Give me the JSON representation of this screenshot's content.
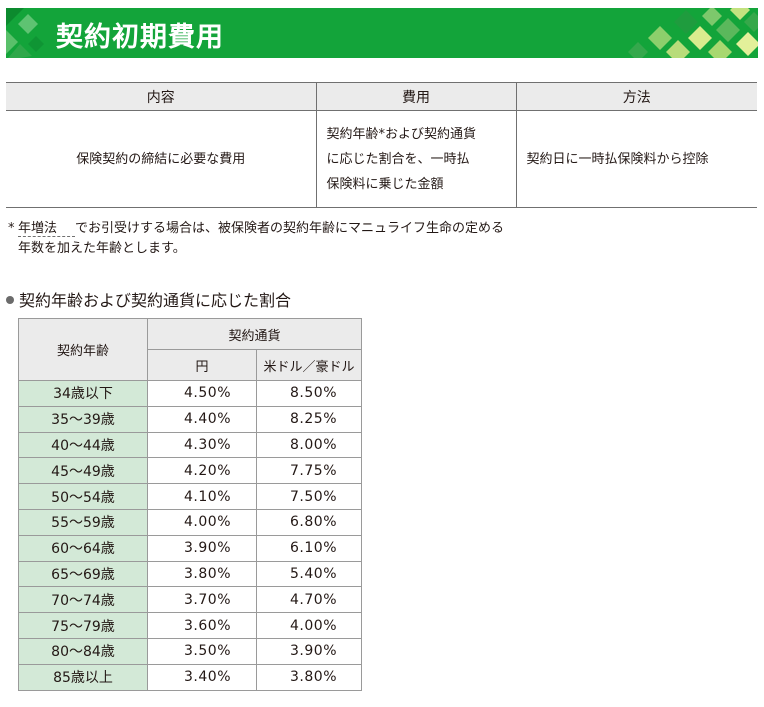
{
  "header": {
    "title": "契約初期費用"
  },
  "main_table": {
    "columns": [
      "内容",
      "費用",
      "方法"
    ],
    "row": {
      "content": "保険契約の締結に必要な費用",
      "cost_lines": [
        "契約年齢*および契約通貨",
        "に応じた割合を、一時払",
        "保険料に乗じた金額"
      ],
      "method": "契約日に一時払保険料から控除"
    }
  },
  "note": {
    "star": "*",
    "term": "年増法",
    "line1_rest": "でお引受けする場合は、被保険者の契約年齢にマニュライフ生命の定める",
    "line2": "年数を加えた年齢とします。"
  },
  "section": {
    "title": "契約年齢および契約通貨に応じた割合"
  },
  "rate_table": {
    "header_age": "契約年齢",
    "header_currency": "契約通貨",
    "header_yen": "円",
    "header_usd_aud": "米ドル／豪ドル",
    "rows": [
      {
        "age": "34歳以下",
        "yen": "4.50%",
        "usd": "8.50%"
      },
      {
        "age": "35〜39歳",
        "yen": "4.40%",
        "usd": "8.25%"
      },
      {
        "age": "40〜44歳",
        "yen": "4.30%",
        "usd": "8.00%"
      },
      {
        "age": "45〜49歳",
        "yen": "4.20%",
        "usd": "7.75%"
      },
      {
        "age": "50〜54歳",
        "yen": "4.10%",
        "usd": "7.50%"
      },
      {
        "age": "55〜59歳",
        "yen": "4.00%",
        "usd": "6.80%"
      },
      {
        "age": "60〜64歳",
        "yen": "3.90%",
        "usd": "6.10%"
      },
      {
        "age": "65〜69歳",
        "yen": "3.80%",
        "usd": "5.40%"
      },
      {
        "age": "70〜74歳",
        "yen": "3.70%",
        "usd": "4.70%"
      },
      {
        "age": "75〜79歳",
        "yen": "3.60%",
        "usd": "4.00%"
      },
      {
        "age": "80〜84歳",
        "yen": "3.50%",
        "usd": "3.90%"
      },
      {
        "age": "85歳以上",
        "yen": "3.40%",
        "usd": "3.80%"
      }
    ]
  },
  "colors": {
    "banner_green": "#13a43a",
    "age_cell_green": "#d3e9d7",
    "header_gray": "#ebebeb"
  },
  "icons": [
    "diamond-pattern-decoration",
    "bullet-dot-icon"
  ]
}
